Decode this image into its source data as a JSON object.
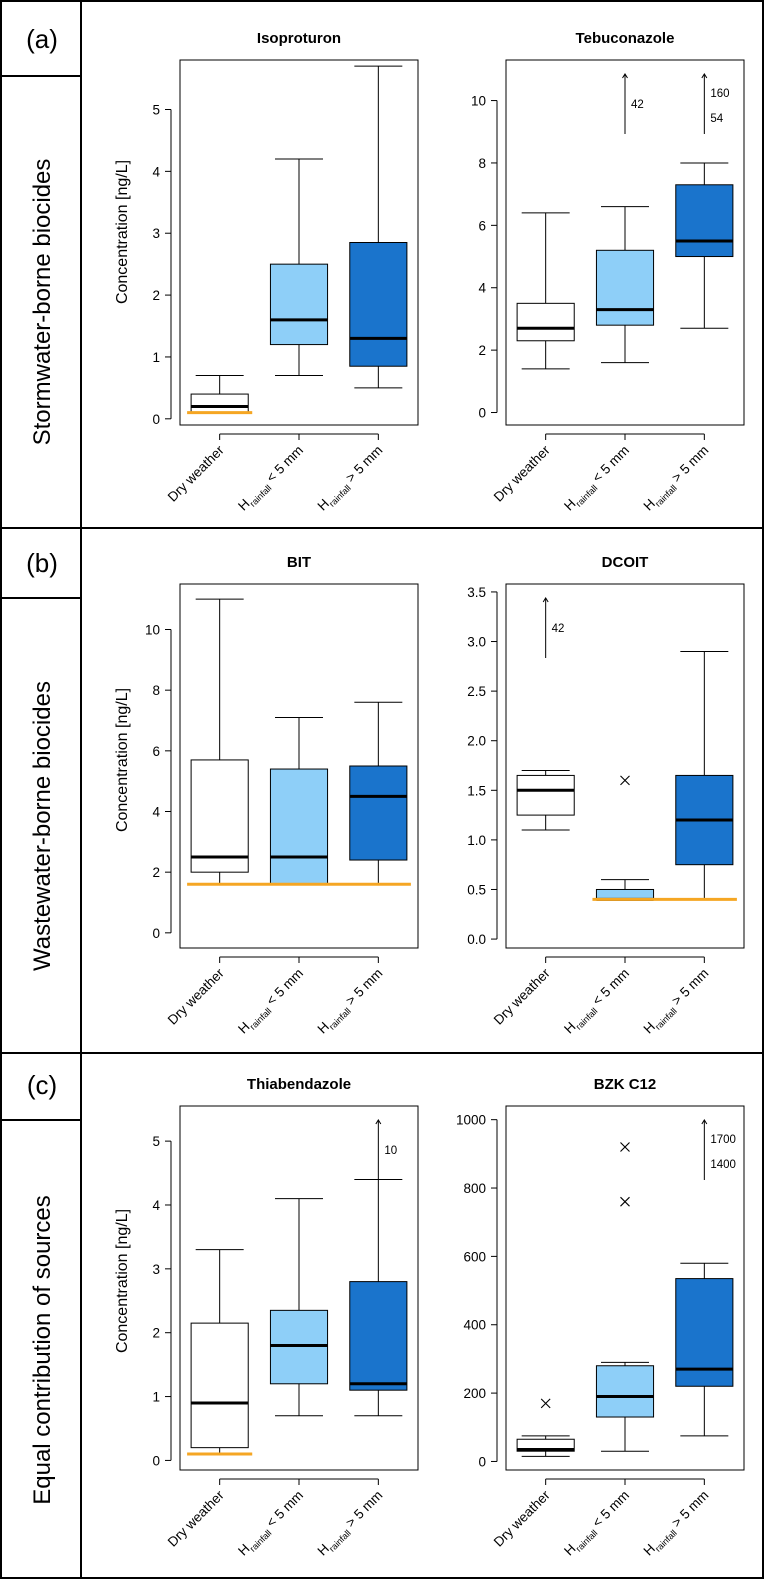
{
  "colors": {
    "dry": "#ffffff",
    "low": "#8ecff8",
    "high": "#1a74cc",
    "loq": "#f5a623",
    "frame": "#000000"
  },
  "categories": [
    {
      "main": "Dry weather",
      "sub": "",
      "tail": ""
    },
    {
      "main": "H",
      "sub": "rainfall",
      "tail": " < 5 mm"
    },
    {
      "main": "H",
      "sub": "rainfall",
      "tail": " > 5 mm"
    }
  ],
  "ylabel": "Concentration [ng/L]",
  "rows": [
    {
      "panel_label": "(a)",
      "row_label": "Stormwater-borne biocides"
    },
    {
      "panel_label": "(b)",
      "row_label": "Wastewater-borne biocides"
    },
    {
      "panel_label": "(c)",
      "row_label": "Equal contribution of sources"
    }
  ],
  "chart_data": [
    {
      "type": "box",
      "title": "Isoproturon",
      "ylim": [
        -0.1,
        5.8
      ],
      "yticks": [
        0,
        1,
        2,
        3,
        4,
        5
      ],
      "tick_labels": [
        "0",
        "1",
        "2",
        "3",
        "4",
        "5"
      ],
      "loq": {
        "value": 0.1,
        "groups": [
          0
        ]
      },
      "boxes": [
        {
          "whisker_low": 0.1,
          "q1": 0.1,
          "median": 0.2,
          "q3": 0.4,
          "whisker_high": 0.7,
          "outliers": []
        },
        {
          "whisker_low": 0.7,
          "q1": 1.2,
          "median": 1.6,
          "q3": 2.5,
          "whisker_high": 4.2,
          "outliers": []
        },
        {
          "whisker_low": 0.5,
          "q1": 0.85,
          "median": 1.3,
          "q3": 2.85,
          "whisker_high": 5.7,
          "outliers": []
        }
      ],
      "offscale": []
    },
    {
      "type": "box",
      "title": "Tebuconazole",
      "ylim": [
        -0.4,
        11.3
      ],
      "yticks": [
        0,
        2,
        4,
        6,
        8,
        10
      ],
      "tick_labels": [
        "0",
        "2",
        "4",
        "6",
        "8",
        "10"
      ],
      "loq": null,
      "boxes": [
        {
          "whisker_low": 1.4,
          "q1": 2.3,
          "median": 2.7,
          "q3": 3.5,
          "whisker_high": 6.4,
          "outliers": []
        },
        {
          "whisker_low": 1.6,
          "q1": 2.8,
          "median": 3.3,
          "q3": 5.2,
          "whisker_high": 6.6,
          "outliers": []
        },
        {
          "whisker_low": 2.7,
          "q1": 5.0,
          "median": 5.5,
          "q3": 7.3,
          "whisker_high": 8.0,
          "outliers": []
        }
      ],
      "offscale": [
        {
          "group": 1,
          "labels": [
            "42"
          ]
        },
        {
          "group": 2,
          "labels": [
            "160",
            "54"
          ]
        }
      ]
    },
    {
      "type": "box",
      "title": "BIT",
      "ylim": [
        -0.5,
        11.5
      ],
      "yticks": [
        0,
        2,
        4,
        6,
        8,
        10
      ],
      "tick_labels": [
        "0",
        "2",
        "4",
        "6",
        "8",
        "10"
      ],
      "loq": {
        "value": 1.6,
        "groups": [
          0,
          1,
          2
        ]
      },
      "boxes": [
        {
          "whisker_low": 1.6,
          "q1": 2.0,
          "median": 2.5,
          "q3": 5.7,
          "whisker_high": 11.0,
          "outliers": []
        },
        {
          "whisker_low": 1.6,
          "q1": 1.6,
          "median": 2.5,
          "q3": 5.4,
          "whisker_high": 7.1,
          "outliers": []
        },
        {
          "whisker_low": 1.6,
          "q1": 2.4,
          "median": 4.5,
          "q3": 5.5,
          "whisker_high": 7.6,
          "outliers": []
        }
      ],
      "offscale": []
    },
    {
      "type": "box",
      "title": "DCOIT",
      "ylim": [
        -0.09,
        3.58
      ],
      "yticks": [
        0,
        0.5,
        1,
        1.5,
        2,
        2.5,
        3,
        3.5
      ],
      "tick_labels": [
        "0.0",
        "0.5",
        "1.0",
        "1.5",
        "2.0",
        "2.5",
        "3.0",
        "3.5"
      ],
      "loq": {
        "value": 0.4,
        "groups": [
          1,
          2
        ]
      },
      "boxes": [
        {
          "whisker_low": 1.1,
          "q1": 1.25,
          "median": 1.5,
          "q3": 1.65,
          "whisker_high": 1.7,
          "outliers": []
        },
        {
          "whisker_low": 0.4,
          "q1": 0.4,
          "median": 0.4,
          "q3": 0.5,
          "whisker_high": 0.6,
          "outliers": [
            1.6
          ]
        },
        {
          "whisker_low": 0.4,
          "q1": 0.75,
          "median": 1.2,
          "q3": 1.65,
          "whisker_high": 2.9,
          "outliers": []
        }
      ],
      "offscale": [
        {
          "group": 0,
          "labels": [
            "42"
          ]
        }
      ]
    },
    {
      "type": "box",
      "title": "Thiabendazole",
      "ylim": [
        -0.15,
        5.55
      ],
      "yticks": [
        0,
        1,
        2,
        3,
        4,
        5
      ],
      "tick_labels": [
        "0",
        "1",
        "2",
        "3",
        "4",
        "5"
      ],
      "loq": {
        "value": 0.1,
        "groups": [
          0
        ]
      },
      "boxes": [
        {
          "whisker_low": 0.1,
          "q1": 0.2,
          "median": 0.9,
          "q3": 2.15,
          "whisker_high": 3.3,
          "outliers": []
        },
        {
          "whisker_low": 0.7,
          "q1": 1.2,
          "median": 1.8,
          "q3": 2.35,
          "whisker_high": 4.1,
          "outliers": []
        },
        {
          "whisker_low": 0.7,
          "q1": 1.1,
          "median": 1.2,
          "q3": 2.8,
          "whisker_high": 4.4,
          "outliers": []
        }
      ],
      "offscale": [
        {
          "group": 2,
          "labels": [
            "10"
          ]
        }
      ]
    },
    {
      "type": "box",
      "title": "BZK C12",
      "ylim": [
        -25,
        1040
      ],
      "yticks": [
        0,
        200,
        400,
        600,
        800,
        1000
      ],
      "tick_labels": [
        "0",
        "200",
        "400",
        "600",
        "800",
        "1000"
      ],
      "loq": null,
      "boxes": [
        {
          "whisker_low": 15,
          "q1": 30,
          "median": 35,
          "q3": 65,
          "whisker_high": 75,
          "outliers": [
            170
          ]
        },
        {
          "whisker_low": 30,
          "q1": 130,
          "median": 190,
          "q3": 280,
          "whisker_high": 290,
          "outliers": [
            760,
            920
          ]
        },
        {
          "whisker_low": 75,
          "q1": 220,
          "median": 270,
          "q3": 535,
          "whisker_high": 580,
          "outliers": []
        }
      ],
      "offscale": [
        {
          "group": 2,
          "labels": [
            "1700",
            "1400"
          ]
        }
      ]
    }
  ]
}
